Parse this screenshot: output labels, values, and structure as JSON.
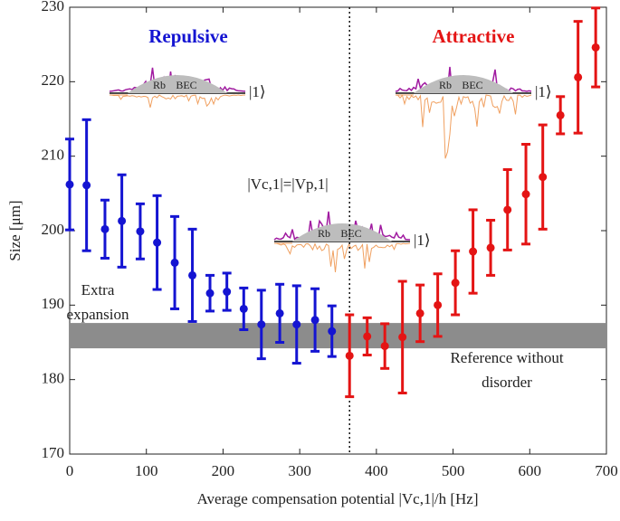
{
  "chart_data": {
    "type": "errorbar",
    "xlabel": "Average compensation potential |Vc,1|/h  [Hz]",
    "ylabel": "Size [μm]",
    "xlim": [
      0,
      700
    ],
    "xticks": [
      0,
      100,
      200,
      300,
      400,
      500,
      600,
      700
    ],
    "ylim": [
      170,
      230
    ],
    "yticks": [
      170,
      180,
      190,
      200,
      210,
      220,
      230
    ],
    "series": [
      {
        "name": "Repulsive",
        "color": "#1414d2",
        "x": [
          0,
          22,
          46,
          68,
          92,
          114,
          137,
          160,
          183,
          205,
          227,
          250,
          274,
          296,
          320,
          342
        ],
        "values": [
          206.2,
          206.1,
          200.2,
          201.3,
          199.9,
          198.4,
          195.7,
          194.0,
          191.6,
          191.8,
          189.5,
          187.4,
          188.9,
          187.4,
          188.0,
          186.5
        ],
        "errors": [
          6.1,
          8.8,
          3.9,
          6.2,
          3.7,
          6.3,
          6.2,
          6.2,
          2.4,
          2.5,
          2.8,
          4.6,
          3.9,
          5.2,
          4.2,
          3.4
        ]
      },
      {
        "name": "Attractive",
        "color": "#e41414",
        "x": [
          365,
          388,
          411,
          434,
          457,
          480,
          503,
          526,
          549,
          571,
          595,
          617,
          640,
          663,
          686
        ],
        "values": [
          183.2,
          185.8,
          184.5,
          185.7,
          188.9,
          190.0,
          193.0,
          197.2,
          197.7,
          202.8,
          204.9,
          207.2,
          215.5,
          220.6,
          224.6
        ],
        "errors": [
          5.5,
          2.5,
          3.0,
          7.5,
          3.8,
          4.2,
          4.3,
          5.6,
          3.7,
          5.4,
          6.7,
          7.0,
          2.5,
          7.5,
          5.3
        ]
      }
    ],
    "reference_band": [
      184.2,
      187.6
    ],
    "reference_label": [
      "Reference without",
      "disorder"
    ],
    "extra_label": [
      "Extra",
      "expansion"
    ],
    "vline_x": 365,
    "vline_label": "|Vc,1|=|Vp,1|",
    "insets": [
      {
        "atom": "Rb",
        "cloud": "BEC",
        "state": "|1⟩"
      },
      {
        "atom": "Rb",
        "cloud": "BEC",
        "state": "|1⟩"
      },
      {
        "atom": "Rb",
        "cloud": "BEC",
        "state": "|1⟩"
      }
    ]
  }
}
